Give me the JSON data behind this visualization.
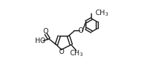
{
  "bg_color": "#ffffff",
  "line_color": "#1a1a1a",
  "line_width": 1.1,
  "font_size": 7.2,
  "figsize": [
    2.4,
    1.07
  ],
  "dpi": 100,
  "xlim": [
    0.0,
    1.05
  ],
  "ylim": [
    0.05,
    0.98
  ]
}
